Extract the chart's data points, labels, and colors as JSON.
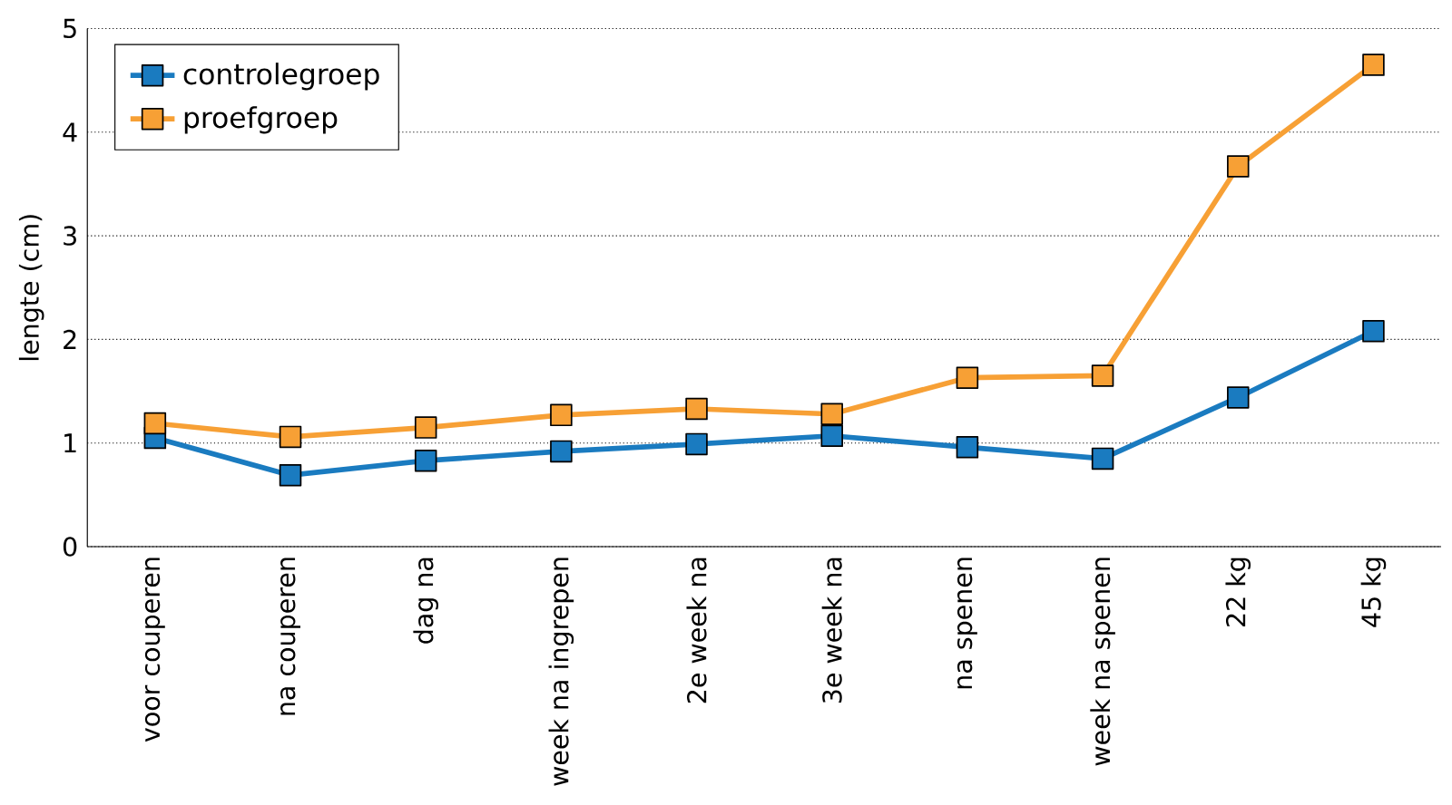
{
  "chart_data": {
    "type": "line",
    "ylabel": "lengte (cm)",
    "categories": [
      "voor couperen",
      "na couperen",
      "dag na",
      "week na ingrepen",
      "2e week na",
      "3e week na",
      "na spenen",
      "week na spenen",
      "22 kg",
      "45 kg"
    ],
    "series": [
      {
        "name": "controlegroep",
        "color": "#1a7bc0",
        "values": [
          1.05,
          0.69,
          0.83,
          0.92,
          0.99,
          1.07,
          0.96,
          0.85,
          1.44,
          2.08
        ]
      },
      {
        "name": "proefgroep",
        "color": "#f7a035",
        "values": [
          1.19,
          1.06,
          1.15,
          1.27,
          1.33,
          1.28,
          1.63,
          1.65,
          3.67,
          4.65
        ]
      }
    ],
    "ylim": [
      0,
      5
    ],
    "yticks": [
      0,
      1,
      2,
      3,
      4,
      5
    ],
    "grid": "y",
    "legend": "top left",
    "marker": "square",
    "line_style": "solid"
  }
}
